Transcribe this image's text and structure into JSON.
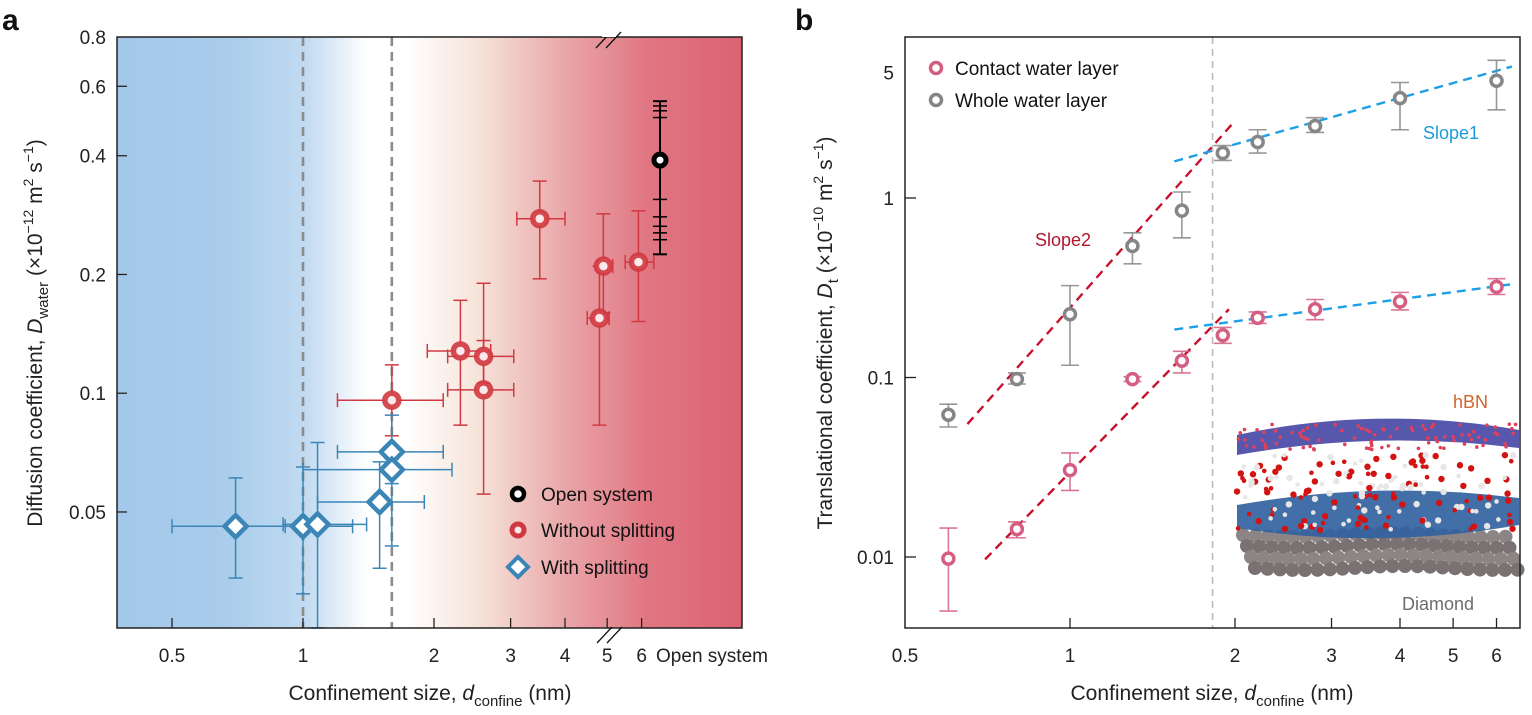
{
  "chart_data": [
    {
      "panel": "a",
      "type": "scatter",
      "title": "",
      "xlabel": "Confinement size, d_confine (nm)",
      "xlabel_parts": {
        "main": "Confinement size, ",
        "var": "d",
        "sub": "confine",
        "unit": " (nm)"
      },
      "ylabel": "Diffusion coefficient, D_water (×10^-12 m^2 s^-1)",
      "ylabel_parts": {
        "main": "Diffusion coefficient, ",
        "var": "D",
        "sub": "water",
        "unit_pre": " (×10",
        "exp1": "−12",
        "unit_mid": " m",
        "exp2": "2",
        "unit_mid2": " s",
        "exp3": "−1",
        "unit_end": ")"
      },
      "xscale": "log",
      "yscale": "log",
      "xlim": [
        0.375,
        7.0
      ],
      "ylim": [
        0.0254,
        0.8
      ],
      "xticks": [
        0.5,
        1,
        2,
        3,
        4,
        5,
        6
      ],
      "xtick_labels": [
        "0.5",
        "1",
        "2",
        "3",
        "4",
        "5",
        "6"
      ],
      "x_break_label": "Open system",
      "yticks": [
        0.05,
        0.1,
        0.2,
        0.4,
        0.6,
        0.8
      ],
      "ytick_labels": [
        "0.05",
        "0.1",
        "0.2",
        "0.4",
        "0.6",
        "0.8"
      ],
      "vlines": [
        1.0,
        1.6
      ],
      "background_gradient": {
        "left": "#a3c8ea",
        "mid": "#ffffff",
        "right": "#dc6272"
      },
      "legend_position": "bottom-right",
      "series": [
        {
          "name": "Open system",
          "color": "#000000",
          "marker": "circle",
          "points": [
            {
              "x": "open",
              "y": 0.39,
              "ylo": 0.225,
              "yhi": 0.55,
              "extra_caps": [
                0.245,
                0.255,
                0.265,
                0.28,
                0.31,
                0.5,
                0.52,
                0.535
              ]
            }
          ]
        },
        {
          "name": "Without splitting",
          "color": "#d0393f",
          "marker": "circle",
          "points": [
            {
              "x": 1.6,
              "y": 0.096,
              "xlo": 1.2,
              "xhi": 2.1,
              "ylo": 0.078,
              "yhi": 0.118
            },
            {
              "x": 2.3,
              "y": 0.128,
              "xlo": 1.93,
              "xhi": 2.7,
              "ylo": 0.083,
              "yhi": 0.172
            },
            {
              "x": 2.6,
              "y": 0.124,
              "xlo": 2.15,
              "xhi": 3.05,
              "ylo": 0.106,
              "yhi": 0.19
            },
            {
              "x": 2.6,
              "y": 0.102,
              "xlo": 2.15,
              "xhi": 3.05,
              "ylo": 0.0555,
              "yhi": 0.136
            },
            {
              "x": 3.5,
              "y": 0.277,
              "xlo": 3.1,
              "xhi": 4.0,
              "ylo": 0.195,
              "yhi": 0.345
            },
            {
              "x": 4.9,
              "y": 0.21,
              "xlo": 4.75,
              "xhi": 5.15,
              "ylo": 0.16,
              "yhi": 0.285
            },
            {
              "x": 4.8,
              "y": 0.155,
              "xlo": 4.5,
              "xhi": 5.05,
              "ylo": 0.083,
              "yhi": 0.21
            },
            {
              "x": 5.9,
              "y": 0.215,
              "xlo": 5.5,
              "xhi": 6.4,
              "ylo": 0.152,
              "yhi": 0.29
            }
          ]
        },
        {
          "name": "With splitting",
          "color": "#3b86b6",
          "marker": "diamond",
          "points": [
            {
              "x": 0.7,
              "y": 0.046,
              "xlo": 0.5,
              "xhi": 0.91,
              "ylo": 0.034,
              "yhi": 0.061
            },
            {
              "x": 1.0,
              "y": 0.046,
              "xlo": 0.7,
              "xhi": 1.3,
              "ylo": 0.031,
              "yhi": 0.065
            },
            {
              "x": 1.08,
              "y": 0.0465,
              "xlo": 0.9,
              "xhi": 1.4,
              "ylo": 0.0254,
              "yhi": 0.075
            },
            {
              "x": 1.6,
              "y": 0.071,
              "xlo": 1.2,
              "xhi": 2.1,
              "ylo": 0.059,
              "yhi": 0.088
            },
            {
              "x": 1.6,
              "y": 0.064,
              "xlo": 1.0,
              "xhi": 2.2,
              "ylo": 0.041,
              "yhi": 0.068
            },
            {
              "x": 1.5,
              "y": 0.053,
              "xlo": 1.08,
              "xhi": 1.9,
              "ylo": 0.036,
              "yhi": 0.067
            }
          ]
        }
      ]
    },
    {
      "panel": "b",
      "type": "scatter",
      "title": "",
      "xlabel": "Confinement size, d_confine (nm)",
      "xlabel_parts": {
        "main": "Confinement size, ",
        "var": "d",
        "sub": "confine",
        "unit": " (nm)"
      },
      "ylabel": "Translational coefficient, D_t (×10^-10 m^2 s^-1)",
      "ylabel_parts": {
        "main": "Translational coefficient, ",
        "var": "D",
        "sub": "t",
        "unit_pre": " (×10",
        "exp1": "−10",
        "unit_mid": " m",
        "exp2": "2",
        "unit_mid2": " s",
        "exp3": "−1",
        "unit_end": ")"
      },
      "xscale": "log",
      "yscale": "log",
      "xlim": [
        0.5,
        6.7
      ],
      "ylim": [
        0.004,
        7.9
      ],
      "xticks": [
        0.5,
        1,
        2,
        3,
        4,
        5,
        6
      ],
      "xtick_labels": [
        "0.5",
        "1",
        "2",
        "3",
        "4",
        "5",
        "6"
      ],
      "yticks": [
        0.01,
        0.1,
        1,
        5
      ],
      "ytick_labels": [
        "0.01",
        "0.1",
        "1",
        "5"
      ],
      "vlines": [
        1.82
      ],
      "legend_position": "top-left",
      "series": [
        {
          "name": "Contact water layer",
          "color": "#d45f82",
          "marker": "open-circle",
          "points": [
            {
              "x": 0.6,
              "y": 0.0098,
              "ylo": 0.005,
              "yhi": 0.0145
            },
            {
              "x": 0.8,
              "y": 0.0143,
              "ylo": 0.0128,
              "yhi": 0.0157
            },
            {
              "x": 1.0,
              "y": 0.0305,
              "ylo": 0.0235,
              "yhi": 0.038
            },
            {
              "x": 1.3,
              "y": 0.098,
              "ylo": 0.095,
              "yhi": 0.101
            },
            {
              "x": 1.6,
              "y": 0.124,
              "ylo": 0.106,
              "yhi": 0.14
            },
            {
              "x": 1.9,
              "y": 0.172,
              "ylo": 0.155,
              "yhi": 0.19
            },
            {
              "x": 2.2,
              "y": 0.215,
              "ylo": 0.2,
              "yhi": 0.232
            },
            {
              "x": 2.8,
              "y": 0.24,
              "ylo": 0.21,
              "yhi": 0.272
            },
            {
              "x": 4.0,
              "y": 0.265,
              "ylo": 0.238,
              "yhi": 0.298
            },
            {
              "x": 6.0,
              "y": 0.32,
              "ylo": 0.29,
              "yhi": 0.355
            }
          ]
        },
        {
          "name": "Whole water layer",
          "color": "#868686",
          "marker": "open-circle",
          "points": [
            {
              "x": 0.6,
              "y": 0.062,
              "ylo": 0.053,
              "yhi": 0.071
            },
            {
              "x": 0.8,
              "y": 0.098,
              "ylo": 0.092,
              "yhi": 0.106
            },
            {
              "x": 1.0,
              "y": 0.225,
              "ylo": 0.117,
              "yhi": 0.325
            },
            {
              "x": 1.3,
              "y": 0.54,
              "ylo": 0.43,
              "yhi": 0.64
            },
            {
              "x": 1.6,
              "y": 0.85,
              "ylo": 0.6,
              "yhi": 1.08
            },
            {
              "x": 1.9,
              "y": 1.78,
              "ylo": 1.62,
              "yhi": 1.96
            },
            {
              "x": 2.2,
              "y": 2.05,
              "ylo": 1.78,
              "yhi": 2.4
            },
            {
              "x": 2.8,
              "y": 2.52,
              "ylo": 2.32,
              "yhi": 2.8
            },
            {
              "x": 4.0,
              "y": 3.6,
              "ylo": 2.4,
              "yhi": 4.4
            },
            {
              "x": 6.0,
              "y": 4.5,
              "ylo": 3.1,
              "yhi": 5.85
            }
          ]
        }
      ],
      "fit_lines": [
        {
          "name": "Slope2",
          "color": "#c8102e",
          "label": "Slope2",
          "x": [
            0.65,
            1.98
          ],
          "y": [
            0.055,
            2.6
          ]
        },
        {
          "name": "Slope2",
          "color": "#c8102e",
          "label": "",
          "x": [
            0.7,
            1.95
          ],
          "y": [
            0.0097,
            0.24
          ]
        },
        {
          "name": "Slope1",
          "color": "#1ea0e6",
          "label": "Slope1",
          "x": [
            1.55,
            6.4
          ],
          "y": [
            1.6,
            5.4
          ]
        },
        {
          "name": "Slope1",
          "color": "#1ea0e6",
          "label": "",
          "x": [
            1.55,
            6.35
          ],
          "y": [
            0.185,
            0.33
          ]
        }
      ],
      "annotations": [
        {
          "text": "Slope2",
          "color": "#b0162e",
          "x": 1.0,
          "y": 0.6
        },
        {
          "text": "Slope1",
          "color": "#1a9bdc",
          "x": 4.6,
          "y": 2.35
        },
        {
          "text": "hBN",
          "color": "#d1652d"
        },
        {
          "text": "Diamond",
          "color": "#6d6d6d"
        }
      ],
      "inset": {
        "description": "molecular simulation snapshot: hBN sheet, water molecules, diamond substrate"
      }
    }
  ],
  "panel_labels": {
    "a": "a",
    "b": "b"
  }
}
